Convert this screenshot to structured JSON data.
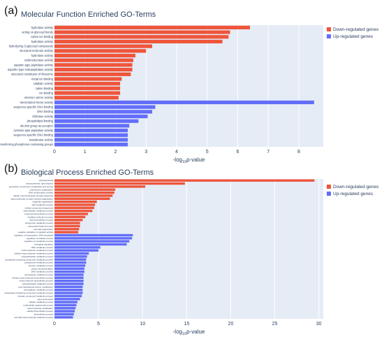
{
  "chart_data": [
    {
      "panel": "(a)",
      "type": "bar",
      "orientation": "horizontal",
      "title": "Molecular Function Enriched GO-Terms",
      "xlabel": {
        "main": "-log",
        "sub": "10",
        "suffix": "p-value"
      },
      "xlim": [
        0,
        8.8
      ],
      "xticks": [
        0,
        1,
        2,
        3,
        4,
        5,
        6,
        7,
        8
      ],
      "colors": {
        "Down-regulated genes": "#EF553B",
        "Up-regulated genes": "#636EFA",
        "plot_bg": "#E5ECF6",
        "grid": "#ffffff"
      },
      "legend": {
        "entries": [
          "Down-regulated genes",
          "Up-regulated genes"
        ],
        "position": "top-right"
      },
      "bars": [
        {
          "label": "hydrolase activity",
          "value": 6.4,
          "group": "Down-regulated genes"
        },
        {
          "label": "acting on glycosyl bonds",
          "value": 5.75,
          "group": "Down-regulated genes"
        },
        {
          "label": "cation ion binding",
          "value": 5.7,
          "group": "Down-regulated genes"
        },
        {
          "label": "hydrolase activity",
          "value": 5.5,
          "group": "Down-regulated genes"
        },
        {
          "label": "hydrolyzing O-glycosyl compounds",
          "value": 3.2,
          "group": "Down-regulated genes"
        },
        {
          "label": "structural molecule activity",
          "value": 3.0,
          "group": "Down-regulated genes"
        },
        {
          "label": "hydrolase activity",
          "value": 2.65,
          "group": "Down-regulated genes"
        },
        {
          "label": "oxidoreductase activity",
          "value": 2.58,
          "group": "Down-regulated genes"
        },
        {
          "label": "aspartic-type peptidase activity",
          "value": 2.55,
          "group": "Down-regulated genes"
        },
        {
          "label": "aspartic-type endopeptidase activity",
          "value": 2.55,
          "group": "Down-regulated genes"
        },
        {
          "label": "structural constituent of ribosome",
          "value": 2.5,
          "group": "Down-regulated genes"
        },
        {
          "label": "metal ion binding",
          "value": 2.2,
          "group": "Down-regulated genes"
        },
        {
          "label": "catalytic activity",
          "value": 2.15,
          "group": "Down-regulated genes"
        },
        {
          "label": "cation binding",
          "value": 2.15,
          "group": "Down-regulated genes"
        },
        {
          "label": "ion binding",
          "value": 2.15,
          "group": "Down-regulated genes"
        },
        {
          "label": "electron carrier activity",
          "value": 2.1,
          "group": "Down-regulated genes"
        },
        {
          "label": "transcription factor activity",
          "value": 8.5,
          "group": "Up-regulated genes"
        },
        {
          "label": "sequence-specific DNA binding",
          "value": 3.3,
          "group": "Up-regulated genes"
        },
        {
          "label": "DNA binding",
          "value": 3.2,
          "group": "Up-regulated genes"
        },
        {
          "label": "chitinase activity",
          "value": 3.05,
          "group": "Up-regulated genes"
        },
        {
          "label": "phospholipid binding",
          "value": 2.75,
          "group": "Up-regulated genes"
        },
        {
          "label": "alcohol group as acceptor",
          "value": 2.45,
          "group": "Up-regulated genes"
        },
        {
          "label": "cysteine-type peptidase activity",
          "value": 2.4,
          "group": "Up-regulated genes"
        },
        {
          "label": "sequence-specific DNA binding",
          "value": 2.4,
          "group": "Up-regulated genes"
        },
        {
          "label": "transferase activity",
          "value": 2.4,
          "group": "Up-regulated genes"
        },
        {
          "label": "transferring phosphorus-containing groups",
          "value": 2.4,
          "group": "Up-regulated genes"
        }
      ]
    },
    {
      "panel": "(b)",
      "type": "bar",
      "orientation": "horizontal",
      "title": "Biological Process Enriched GO-Terms",
      "xlabel": {
        "main": "-log",
        "sub": "10",
        "suffix": "p-value"
      },
      "xlim": [
        0,
        30.5
      ],
      "xticks": [
        0,
        5,
        10,
        15,
        20,
        25,
        30
      ],
      "colors": {
        "Down-regulated genes": "#EF553B",
        "Up-regulated genes": "#636EFA",
        "plot_bg": "#E5ECF6",
        "grid": "#ffffff"
      },
      "legend": {
        "entries": [
          "Down-regulated genes",
          "Up-regulated genes"
        ],
        "position": "top-right"
      },
      "bars": [
        {
          "label": "photosynthesis",
          "value": 29.5,
          "group": "Down-regulated genes"
        },
        {
          "label": "photosynthesis, light reaction",
          "value": 14.8,
          "group": "Down-regulated genes"
        },
        {
          "label": "generation of precursor metabolites and energy",
          "value": 10.3,
          "group": "Down-regulated genes"
        },
        {
          "label": "nucleosome organization",
          "value": 6.9,
          "group": "Down-regulated genes"
        },
        {
          "label": "DNA conformation change",
          "value": 6.8,
          "group": "Down-regulated genes"
        },
        {
          "label": "cellular macromolecular complex assembly",
          "value": 6.6,
          "group": "Down-regulated genes"
        },
        {
          "label": "macromolecular complex subunit organization",
          "value": 6.3,
          "group": "Down-regulated genes"
        },
        {
          "label": "organelle organization",
          "value": 4.8,
          "group": "Down-regulated genes"
        },
        {
          "label": "lipid metabolic process",
          "value": 4.6,
          "group": "Down-regulated genes"
        },
        {
          "label": "cellular component biogenesis",
          "value": 4.5,
          "group": "Down-regulated genes"
        },
        {
          "label": "carbohydrate metabolic process",
          "value": 4.3,
          "group": "Down-regulated genes"
        },
        {
          "label": "terpenoid biosynthetic process",
          "value": 3.8,
          "group": "Down-regulated genes"
        },
        {
          "label": "oxidation-reduction process",
          "value": 3.5,
          "group": "Down-regulated genes"
        },
        {
          "label": "lipid biosynthetic process",
          "value": 3.2,
          "group": "Down-regulated genes"
        },
        {
          "label": "tetrapyrrole metabolic process",
          "value": 2.9,
          "group": "Down-regulated genes"
        },
        {
          "label": "microtubule-based process",
          "value": 2.9,
          "group": "Down-regulated genes"
        },
        {
          "label": "cell wall organization",
          "value": 2.8,
          "group": "Down-regulated genes"
        },
        {
          "label": "negative regulation of catalytic activity",
          "value": 2.7,
          "group": "Down-regulated genes"
        },
        {
          "label": "regulation of transcription, DNA-templated",
          "value": 8.9,
          "group": "Up-regulated genes"
        },
        {
          "label": "regulation of cellular process",
          "value": 8.8,
          "group": "Up-regulated genes"
        },
        {
          "label": "regulation of metabolic process",
          "value": 8.5,
          "group": "Up-regulated genes"
        },
        {
          "label": "biological regulation",
          "value": 8.2,
          "group": "Up-regulated genes"
        },
        {
          "label": "RNA metabolic process",
          "value": 5.2,
          "group": "Up-regulated genes"
        },
        {
          "label": "macromolecule metabolic process",
          "value": 5.0,
          "group": "Up-regulated genes"
        },
        {
          "label": "cellular macromolecule metabolic process",
          "value": 3.9,
          "group": "Up-regulated genes"
        },
        {
          "label": "polysaccharide metabolic process",
          "value": 3.7,
          "group": "Up-regulated genes"
        },
        {
          "label": "phosphate-containing compound metabolic process",
          "value": 3.6,
          "group": "Up-regulated genes"
        },
        {
          "label": "phosphorus metabolic process",
          "value": 3.6,
          "group": "Up-regulated genes"
        },
        {
          "label": "primary metabolic process",
          "value": 3.5,
          "group": "Up-regulated genes"
        },
        {
          "label": "protein phosphorylation",
          "value": 3.4,
          "group": "Up-regulated genes"
        },
        {
          "label": "DNA metabolic process",
          "value": 3.4,
          "group": "Up-regulated genes"
        },
        {
          "label": "aminoglycan catabolic process",
          "value": 3.3,
          "group": "Up-regulated genes"
        },
        {
          "label": "cellular macromolecule biosynthetic process",
          "value": 3.3,
          "group": "Up-regulated genes"
        },
        {
          "label": "macromolecule biosynthetic process",
          "value": 3.3,
          "group": "Up-regulated genes"
        },
        {
          "label": "polysaccharide catabolic process",
          "value": 3.3,
          "group": "Up-regulated genes"
        },
        {
          "label": "post-translational protein modification",
          "value": 3.2,
          "group": "Up-regulated genes"
        },
        {
          "label": "aminoglycan metabolic process",
          "value": 3.2,
          "group": "Up-regulated genes"
        },
        {
          "label": "nucleobase-containing compound metabolic process",
          "value": 3.2,
          "group": "Up-regulated genes"
        },
        {
          "label": "nitrogen compound metabolic process",
          "value": 3.1,
          "group": "Up-regulated genes"
        },
        {
          "label": "gene expression",
          "value": 2.9,
          "group": "Up-regulated genes"
        },
        {
          "label": "cellular metabolic process",
          "value": 2.6,
          "group": "Up-regulated genes"
        },
        {
          "label": "multicellular organismal process",
          "value": 2.5,
          "group": "Up-regulated genes"
        },
        {
          "label": "macromolecule modification",
          "value": 2.4,
          "group": "Up-regulated genes"
        },
        {
          "label": "cellular biosynthetic process",
          "value": 2.3,
          "group": "Up-regulated genes"
        },
        {
          "label": "biosynthetic process",
          "value": 2.2,
          "group": "Up-regulated genes"
        },
        {
          "label": "cell wall macromolecule catabolic process",
          "value": 2.1,
          "group": "Up-regulated genes"
        }
      ]
    }
  ]
}
